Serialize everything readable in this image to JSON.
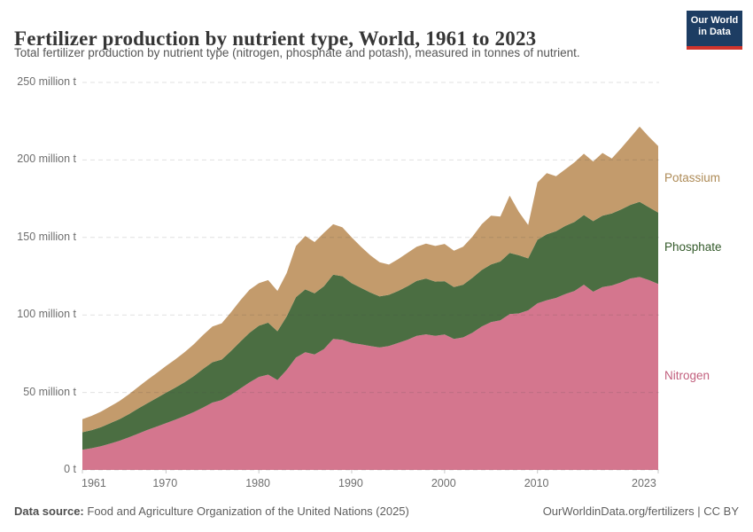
{
  "header": {
    "title": "Fertilizer production by nutrient type, World, 1961 to 2023",
    "subtitle": "Total fertilizer production by nutrient type (nitrogen, phosphate and potash), measured in tonnes of nutrient.",
    "logo_line1": "Our World",
    "logo_line2": "in Data",
    "logo_bg": "#1d3d63",
    "logo_bar": "#d0342c"
  },
  "chart_data": {
    "type": "area",
    "stacked": true,
    "title": "Fertilizer production by nutrient type, World, 1961 to 2023",
    "xlabel": "",
    "ylabel": "tonnes of nutrient",
    "unit": "million t",
    "grid": true,
    "legend_position": "right",
    "ylim": [
      0,
      250
    ],
    "x": [
      1961,
      1962,
      1963,
      1964,
      1965,
      1966,
      1967,
      1968,
      1969,
      1970,
      1971,
      1972,
      1973,
      1974,
      1975,
      1976,
      1977,
      1978,
      1979,
      1980,
      1981,
      1982,
      1983,
      1984,
      1985,
      1986,
      1987,
      1988,
      1989,
      1990,
      1991,
      1992,
      1993,
      1994,
      1995,
      1996,
      1997,
      1998,
      1999,
      2000,
      2001,
      2002,
      2003,
      2004,
      2005,
      2006,
      2007,
      2008,
      2009,
      2010,
      2011,
      2012,
      2013,
      2014,
      2015,
      2016,
      2017,
      2018,
      2019,
      2020,
      2021,
      2022,
      2023
    ],
    "series": [
      {
        "name": "Nitrogen",
        "color": "#d4768e",
        "label_color": "#c2607e",
        "values": [
          13.0,
          14.0,
          15.3,
          17.0,
          18.8,
          21.0,
          23.4,
          25.8,
          28.0,
          30.2,
          32.4,
          34.7,
          37.3,
          40.3,
          43.5,
          45.0,
          48.5,
          52.5,
          56.5,
          60.0,
          61.5,
          58.0,
          64.5,
          72.5,
          76.0,
          74.5,
          78.0,
          84.5,
          84.0,
          82.0,
          81.0,
          80.0,
          79.0,
          80.0,
          82.0,
          84.0,
          86.5,
          87.5,
          86.5,
          87.4,
          84.5,
          85.5,
          88.5,
          92.5,
          95.4,
          96.5,
          100.5,
          101.0,
          103.0,
          107.5,
          109.5,
          111.0,
          113.5,
          115.5,
          119.5,
          115.0,
          118.0,
          119.0,
          121.0,
          123.5,
          124.5,
          122.5,
          120.0
        ]
      },
      {
        "name": "Phosphate",
        "color": "#4b6e42",
        "label_color": "#335a2a",
        "values": [
          11.3,
          11.7,
          12.3,
          13.2,
          14.0,
          15.0,
          16.2,
          17.3,
          18.4,
          19.6,
          20.7,
          21.9,
          23.3,
          24.9,
          26.0,
          26.2,
          28.2,
          30.2,
          32.0,
          33.0,
          33.5,
          31.5,
          34.5,
          39.0,
          40.5,
          39.5,
          40.5,
          41.5,
          41.0,
          38.5,
          36.5,
          34.5,
          33.0,
          33.0,
          33.5,
          34.5,
          35.5,
          36.0,
          35.0,
          34.4,
          33.5,
          34.0,
          35.5,
          36.5,
          37.2,
          38.0,
          39.5,
          37.5,
          33.5,
          41.0,
          42.5,
          43.0,
          44.0,
          44.5,
          45.0,
          45.5,
          46.0,
          46.5,
          47.0,
          47.5,
          48.5,
          47.0,
          46.0
        ]
      },
      {
        "name": "Potassium",
        "color": "#c39b6c",
        "label_color": "#ae8b57",
        "values": [
          8.5,
          9.2,
          10.0,
          10.8,
          11.7,
          12.8,
          13.9,
          15.0,
          16.1,
          17.3,
          18.2,
          19.3,
          20.5,
          21.9,
          23.0,
          23.4,
          25.0,
          26.6,
          27.8,
          27.5,
          27.5,
          26.0,
          28.0,
          33.0,
          34.5,
          33.0,
          34.5,
          32.5,
          31.5,
          29.5,
          26.5,
          24.0,
          22.0,
          19.5,
          20.5,
          21.5,
          22.0,
          22.5,
          23.0,
          24.0,
          23.5,
          24.5,
          26.5,
          29.5,
          31.5,
          29.0,
          37.0,
          28.0,
          21.5,
          37.0,
          39.5,
          35.5,
          36.5,
          38.5,
          39.5,
          38.5,
          40.5,
          35.5,
          39.5,
          43.5,
          48.5,
          45.5,
          43.0
        ]
      }
    ],
    "yticks": [
      {
        "value": 0,
        "label": "0 t"
      },
      {
        "value": 50,
        "label": "50 million t"
      },
      {
        "value": 100,
        "label": "100 million t"
      },
      {
        "value": 150,
        "label": "150 million t"
      },
      {
        "value": 200,
        "label": "200 million t"
      },
      {
        "value": 250,
        "label": "250 million t"
      }
    ],
    "xticks": [
      {
        "value": 1961,
        "label": "1961"
      },
      {
        "value": 1970,
        "label": "1970"
      },
      {
        "value": 1980,
        "label": "1980"
      },
      {
        "value": 1990,
        "label": "1990"
      },
      {
        "value": 2000,
        "label": "2000"
      },
      {
        "value": 2010,
        "label": "2010"
      },
      {
        "value": 2023,
        "label": "2023"
      }
    ]
  },
  "footer": {
    "source_label": "Data source:",
    "source_text": "Food and Agriculture Organization of the United Nations (2025)",
    "credit": "OurWorldinData.org/fertilizers | CC BY"
  }
}
